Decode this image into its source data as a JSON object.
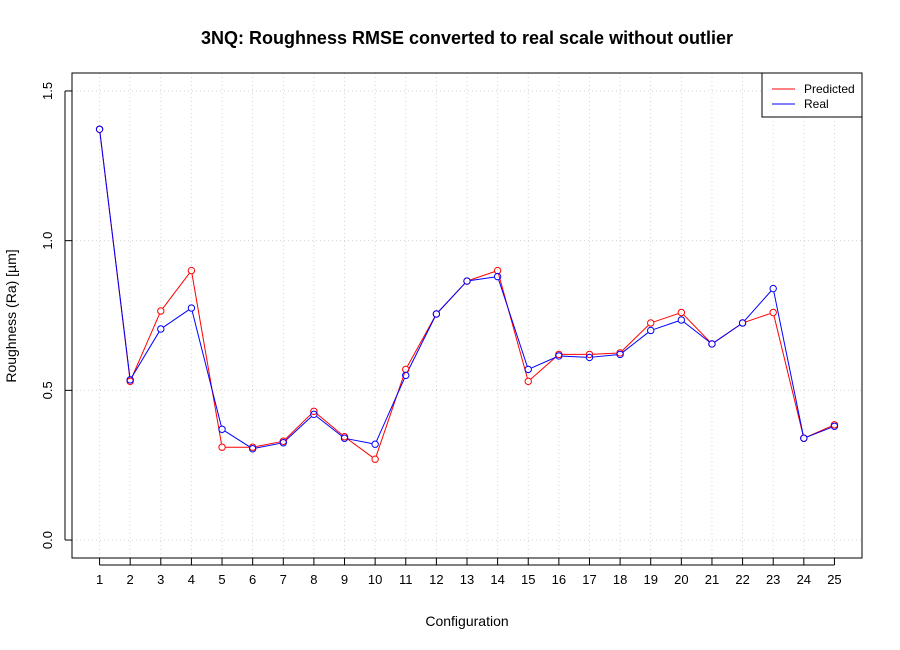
{
  "chart_data": {
    "type": "line",
    "title": "3NQ: Roughness RMSE converted to real scale without outlier",
    "xlabel": "Configuration",
    "ylabel": "Roughness (Ra) [µm]",
    "x": [
      1,
      2,
      3,
      4,
      5,
      6,
      7,
      8,
      9,
      10,
      11,
      12,
      13,
      14,
      15,
      16,
      17,
      18,
      19,
      20,
      21,
      22,
      23,
      24,
      25
    ],
    "xticks": [
      "1",
      "2",
      "3",
      "4",
      "5",
      "6",
      "7",
      "8",
      "9",
      "10",
      "11",
      "12",
      "13",
      "14",
      "15",
      "16",
      "17",
      "18",
      "19",
      "20",
      "21",
      "22",
      "23",
      "24",
      "25"
    ],
    "yticks": [
      "0.0",
      "0.5",
      "1.0",
      "1.5"
    ],
    "ylim": [
      -0.06,
      1.56
    ],
    "xlim": [
      0.1,
      25.9
    ],
    "grid": true,
    "legend_position": "top-right",
    "series": [
      {
        "name": "Predicted",
        "color": "#ff0000",
        "values": [
          1.372,
          0.53,
          0.765,
          0.9,
          0.31,
          0.31,
          0.33,
          0.43,
          0.345,
          0.27,
          0.57,
          0.755,
          0.865,
          0.9,
          0.53,
          0.62,
          0.62,
          0.625,
          0.725,
          0.76,
          0.655,
          0.725,
          0.76,
          0.34,
          0.385
        ]
      },
      {
        "name": "Real",
        "color": "#0000ff",
        "values": [
          1.372,
          0.535,
          0.705,
          0.775,
          0.37,
          0.305,
          0.325,
          0.42,
          0.34,
          0.32,
          0.55,
          0.755,
          0.865,
          0.88,
          0.57,
          0.615,
          0.61,
          0.62,
          0.7,
          0.735,
          0.655,
          0.725,
          0.84,
          0.34,
          0.38
        ]
      }
    ]
  }
}
